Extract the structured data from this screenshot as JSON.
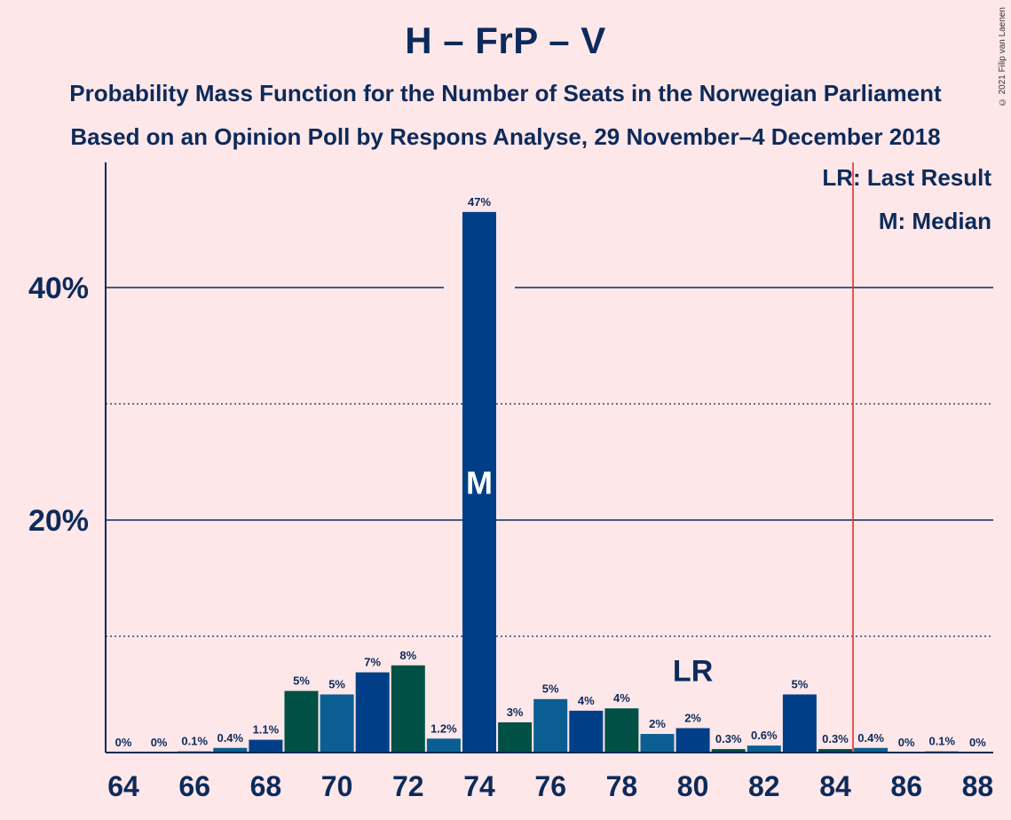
{
  "chart_data": {
    "type": "bar",
    "title": "H – FrP – V",
    "subtitle_line1": "Probability Mass Function for the Number of Seats in the Norwegian Parliament",
    "subtitle_line2": "Based on an Opinion Poll by Respons Analyse, 29 November–4 December 2018",
    "copyright": "© 2021 Filip van Laenen",
    "legend": {
      "last_result": "LR: Last Result",
      "median": "M: Median"
    },
    "x": [
      64,
      65,
      66,
      67,
      68,
      69,
      70,
      71,
      72,
      73,
      74,
      75,
      76,
      77,
      78,
      79,
      80,
      81,
      82,
      83,
      84,
      85,
      86,
      87,
      88
    ],
    "values": [
      0,
      0,
      0.1,
      0.4,
      1.1,
      5.3,
      5.0,
      6.9,
      7.5,
      1.2,
      46.5,
      2.6,
      4.6,
      3.6,
      3.8,
      1.6,
      2.1,
      0.3,
      0.6,
      5.0,
      0.3,
      0.4,
      0,
      0.1,
      0
    ],
    "labels": [
      "0%",
      "0%",
      "0.1%",
      "0.4%",
      "1.1%",
      "5%",
      "5%",
      "7%",
      "8%",
      "1.2%",
      "47%",
      "3%",
      "5%",
      "4%",
      "4%",
      "2%",
      "2%",
      "0.3%",
      "0.6%",
      "5%",
      "0.3%",
      "0.4%",
      "0%",
      "0.1%",
      "0%"
    ],
    "x_tick_labels": [
      "64",
      "66",
      "68",
      "70",
      "72",
      "74",
      "76",
      "78",
      "80",
      "82",
      "84",
      "86",
      "88"
    ],
    "y_ticks": [
      {
        "value": 20,
        "label": "20%"
      },
      {
        "value": 40,
        "label": "40%"
      }
    ],
    "ylim": [
      0,
      50
    ],
    "grid": "solid at 20% steps, dotted at 10% steps",
    "median_seat": 74,
    "median_label": "M",
    "last_result_seat": 80,
    "last_result_label": "LR",
    "majority_line_at": 84.5,
    "colors": {
      "background": "#fde7e9",
      "text": "#0d2a5a",
      "bar_palette": [
        "#0b5e92",
        "#003f88",
        "#005046"
      ],
      "majority_line": "#e0342f"
    }
  }
}
